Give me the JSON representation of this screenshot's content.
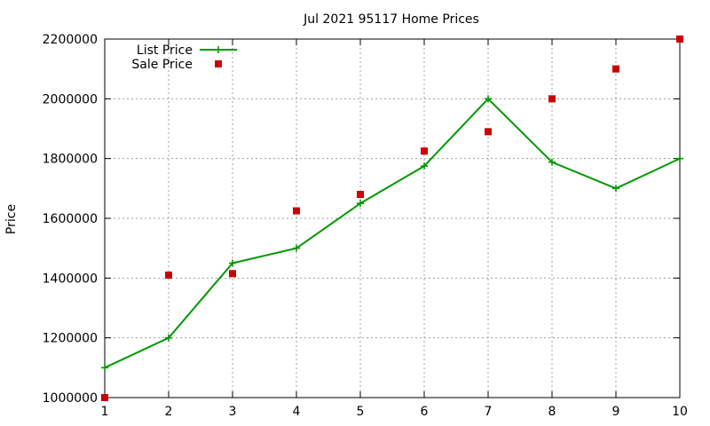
{
  "chart_data": {
    "type": "line",
    "title": "Jul 2021 95117 Home Prices",
    "xlabel": "",
    "ylabel": "Price",
    "xlim": [
      1,
      10
    ],
    "ylim": [
      1000000,
      2200000
    ],
    "x_ticks": [
      1,
      2,
      3,
      4,
      5,
      6,
      7,
      8,
      9,
      10
    ],
    "y_ticks": [
      1000000,
      1200000,
      1400000,
      1600000,
      1800000,
      2000000,
      2200000
    ],
    "grid": true,
    "legend_position": "top-left",
    "series": [
      {
        "name": "List Price",
        "type": "line",
        "marker": "plus",
        "color": "#009900",
        "x": [
          1,
          2,
          3,
          4,
          5,
          6,
          7,
          8,
          9,
          10
        ],
        "values": [
          1100000,
          1200000,
          1450000,
          1500000,
          1650000,
          1775000,
          2000000,
          1788000,
          1700000,
          1800000
        ]
      },
      {
        "name": "Sale Price",
        "type": "scatter",
        "marker": "square",
        "color": "#cc0000",
        "x": [
          1,
          2,
          3,
          4,
          5,
          6,
          7,
          8,
          9,
          10
        ],
        "values": [
          1000000,
          1410000,
          1415000,
          1625000,
          1680000,
          1825000,
          1890000,
          2000000,
          2100000,
          2200000
        ]
      }
    ]
  }
}
